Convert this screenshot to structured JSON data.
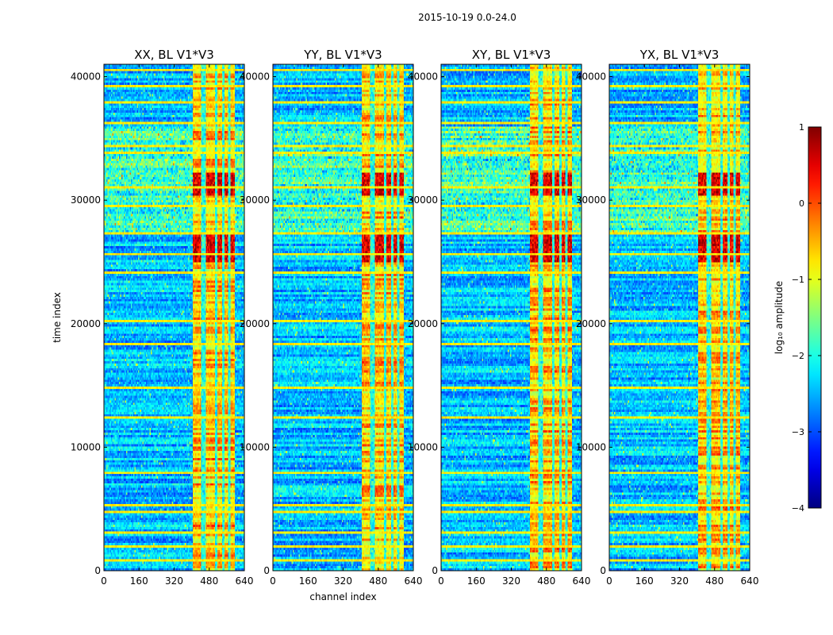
{
  "figure_title": "2015-10-19 0.0-24.0",
  "shared_ylabel": "time index",
  "shared_xlabel": "channel index",
  "chart_data": [
    {
      "type": "heatmap",
      "title": "XX, BL V1*V3",
      "xlim": [
        0,
        640
      ],
      "ylim": [
        0,
        41000
      ],
      "x_ticks": [
        0,
        160,
        320,
        480,
        640
      ],
      "y_ticks": [
        0,
        10000,
        20000,
        30000,
        40000
      ],
      "y_tick_labels_visible": true,
      "xlabel": "",
      "ylabel": "time index",
      "seed": 11
    },
    {
      "type": "heatmap",
      "title": "YY, BL V1*V3",
      "xlim": [
        0,
        640
      ],
      "ylim": [
        0,
        41000
      ],
      "x_ticks": [
        0,
        160,
        320,
        480,
        640
      ],
      "y_ticks": [
        0,
        10000,
        20000,
        30000,
        40000
      ],
      "y_tick_labels_visible": true,
      "xlabel": "channel index",
      "ylabel": "",
      "seed": 23
    },
    {
      "type": "heatmap",
      "title": "XY, BL V1*V3",
      "xlim": [
        0,
        640
      ],
      "ylim": [
        0,
        41000
      ],
      "x_ticks": [
        0,
        160,
        320,
        480,
        640
      ],
      "y_ticks": [
        0,
        10000,
        20000,
        30000,
        40000
      ],
      "y_tick_labels_visible": true,
      "xlabel": "",
      "ylabel": "",
      "seed": 37
    },
    {
      "type": "heatmap",
      "title": "YX, BL V1*V3",
      "xlim": [
        0,
        640
      ],
      "ylim": [
        0,
        41000
      ],
      "x_ticks": [
        0,
        160,
        320,
        480,
        640
      ],
      "y_ticks": [
        0,
        10000,
        20000,
        30000,
        40000
      ],
      "y_tick_labels_visible": true,
      "xlabel": "",
      "ylabel": "",
      "seed": 53
    }
  ],
  "heatmap_features": {
    "bright_channel_band": [
      405,
      600
    ],
    "bright_channel_gaps": [
      448,
      460,
      515,
      545,
      575
    ],
    "flagged_time_rows": [
      800,
      1800,
      3000,
      4600,
      5200,
      7900,
      12300,
      14800,
      18400,
      20300,
      24100,
      25700,
      27400,
      29600,
      31000,
      33900,
      34500,
      36300,
      38000,
      39400,
      40600
    ],
    "high_amplitude_time_ranges": [
      [
        25000,
        27500
      ],
      [
        30400,
        32300
      ]
    ],
    "noisy_time_range": [
      27500,
      36000
    ]
  },
  "colorbar": {
    "label": "log₁₀ amplitude",
    "min": -4,
    "max": 1,
    "ticks": [
      -4,
      -3,
      -2,
      -1,
      0,
      1
    ],
    "tick_labels": [
      "−4",
      "−3",
      "−2",
      "−1",
      "0",
      "1"
    ],
    "colormap": "jet"
  }
}
